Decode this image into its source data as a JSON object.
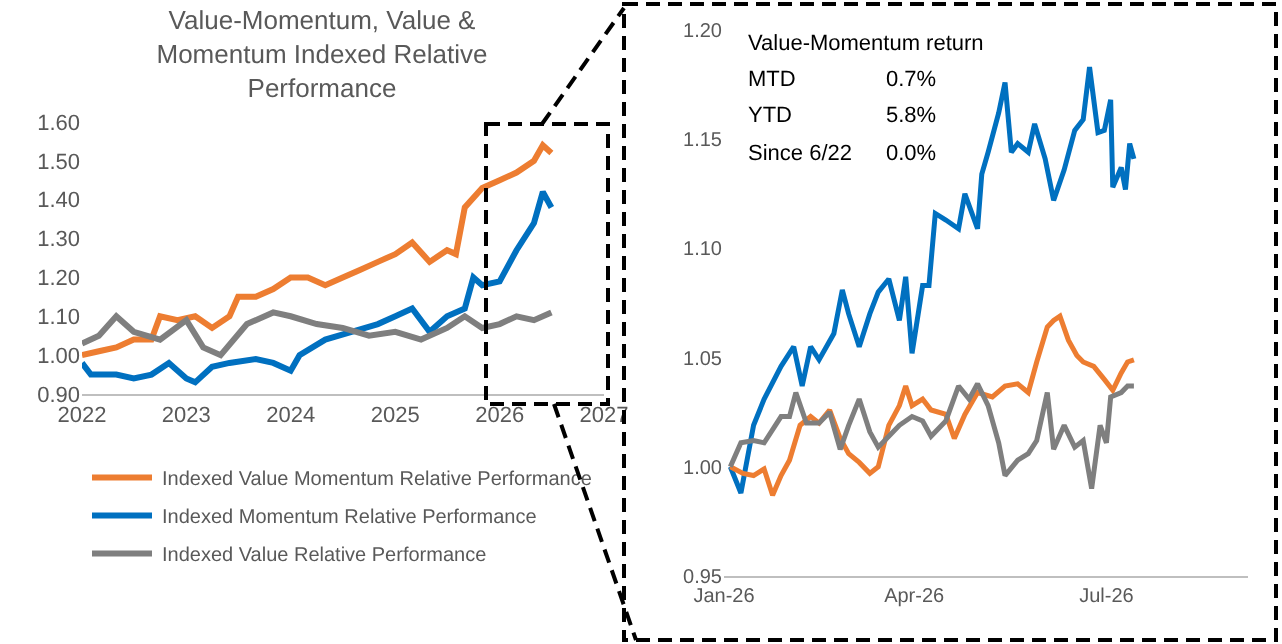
{
  "chart_data": [
    {
      "type": "line",
      "title": "Value-Momentum, Value & Momentum Indexed Relative Performance",
      "xlim": [
        "2022-01-01",
        "2027-01-01"
      ],
      "xticks": [
        {
          "value": "2022-01-01",
          "label": "2022"
        },
        {
          "value": "2023-01-01",
          "label": "2023"
        },
        {
          "value": "2024-01-01",
          "label": "2024"
        },
        {
          "value": "2025-01-01",
          "label": "2025"
        },
        {
          "value": "2026-01-01",
          "label": "2026"
        },
        {
          "value": "2027-01-01",
          "label": "2027"
        }
      ],
      "ylim": [
        0.9,
        1.6
      ],
      "yticks": [
        {
          "value": 0.9,
          "label": "0.90"
        },
        {
          "value": 1.0,
          "label": "1.00"
        },
        {
          "value": 1.1,
          "label": "1.10"
        },
        {
          "value": 1.2,
          "label": "1.20"
        },
        {
          "value": 1.3,
          "label": "1.30"
        },
        {
          "value": 1.4,
          "label": "1.40"
        },
        {
          "value": 1.5,
          "label": "1.50"
        },
        {
          "value": 1.6,
          "label": "1.60"
        }
      ],
      "grid": false,
      "legend": "bottom",
      "series": [
        {
          "name": "Indexed Value Momentum Relative Performance",
          "color": "#ed7d31",
          "x": [
            "2022-01",
            "2022-03",
            "2022-05",
            "2022-07",
            "2022-09",
            "2022-10",
            "2022-12",
            "2023-02",
            "2023-04",
            "2023-06",
            "2023-07",
            "2023-09",
            "2023-11",
            "2024-01",
            "2024-03",
            "2024-05",
            "2024-07",
            "2024-09",
            "2024-11",
            "2025-01",
            "2025-03",
            "2025-05",
            "2025-07",
            "2025-08",
            "2025-09",
            "2025-11",
            "2026-01",
            "2026-03",
            "2026-05",
            "2026-06",
            "2026-07"
          ],
          "values": [
            1.0,
            1.01,
            1.02,
            1.04,
            1.04,
            1.1,
            1.09,
            1.1,
            1.07,
            1.1,
            1.15,
            1.15,
            1.17,
            1.2,
            1.2,
            1.18,
            1.2,
            1.22,
            1.24,
            1.26,
            1.29,
            1.24,
            1.27,
            1.26,
            1.38,
            1.43,
            1.45,
            1.47,
            1.5,
            1.54,
            1.52
          ]
        },
        {
          "name": "Indexed Momentum Relative Performance",
          "color": "#0070c0",
          "x": [
            "2022-01",
            "2022-02",
            "2022-05",
            "2022-07",
            "2022-09",
            "2022-11",
            "2023-01",
            "2023-02",
            "2023-04",
            "2023-06",
            "2023-09",
            "2023-11",
            "2024-01",
            "2024-02",
            "2024-05",
            "2024-08",
            "2024-11",
            "2025-01",
            "2025-03",
            "2025-05",
            "2025-07",
            "2025-09",
            "2025-10",
            "2025-11",
            "2026-01",
            "2026-03",
            "2026-05",
            "2026-06",
            "2026-07"
          ],
          "values": [
            0.98,
            0.95,
            0.95,
            0.94,
            0.95,
            0.98,
            0.94,
            0.93,
            0.97,
            0.98,
            0.99,
            0.98,
            0.96,
            1.0,
            1.04,
            1.06,
            1.08,
            1.1,
            1.12,
            1.06,
            1.1,
            1.12,
            1.2,
            1.18,
            1.19,
            1.27,
            1.34,
            1.42,
            1.38
          ]
        },
        {
          "name": "Indexed Value Relative Performance",
          "color": "#7f7f7f",
          "x": [
            "2022-01",
            "2022-03",
            "2022-05",
            "2022-07",
            "2022-10",
            "2023-01",
            "2023-03",
            "2023-05",
            "2023-08",
            "2023-11",
            "2024-01",
            "2024-04",
            "2024-07",
            "2024-10",
            "2025-01",
            "2025-04",
            "2025-07",
            "2025-09",
            "2025-11",
            "2026-01",
            "2026-03",
            "2026-05",
            "2026-07"
          ],
          "values": [
            1.03,
            1.05,
            1.1,
            1.06,
            1.04,
            1.09,
            1.02,
            1.0,
            1.08,
            1.11,
            1.1,
            1.08,
            1.07,
            1.05,
            1.06,
            1.04,
            1.07,
            1.1,
            1.07,
            1.08,
            1.1,
            1.09,
            1.11
          ]
        }
      ]
    },
    {
      "type": "line",
      "annotations": [
        "Value-Momentum return",
        "MTD",
        "0.7%",
        "YTD",
        "5.8%",
        "Since 6/22",
        "0.0%"
      ],
      "xlim": [
        "2026-01-01",
        "2026-09-06"
      ],
      "xticks": [
        {
          "value": "2026-01-01",
          "label": "Jan-26"
        },
        {
          "value": "2026-04-01",
          "label": "Apr-26"
        },
        {
          "value": "2026-07-01",
          "label": "Jul-26"
        }
      ],
      "ylim": [
        0.95,
        1.2
      ],
      "yticks": [
        {
          "value": 0.95,
          "label": "0.95"
        },
        {
          "value": 1.0,
          "label": "1.00"
        },
        {
          "value": 1.05,
          "label": "1.05"
        },
        {
          "value": 1.1,
          "label": "1.10"
        },
        {
          "value": 1.15,
          "label": "1.15"
        },
        {
          "value": 1.2,
          "label": "1.20"
        }
      ],
      "grid": false,
      "series": [
        {
          "color": "#0070c0",
          "x": [
            "2026-01-04",
            "2026-01-09",
            "2026-01-15",
            "2026-01-20",
            "2026-01-28",
            "2026-02-03",
            "2026-02-07",
            "2026-02-11",
            "2026-02-15",
            "2026-02-22",
            "2026-02-26",
            "2026-03-01",
            "2026-03-06",
            "2026-03-11",
            "2026-03-15",
            "2026-03-20",
            "2026-03-25",
            "2026-03-28",
            "2026-03-31",
            "2026-04-05",
            "2026-04-08",
            "2026-04-11",
            "2026-04-16",
            "2026-04-22",
            "2026-04-25",
            "2026-05-01",
            "2026-05-03",
            "2026-05-06",
            "2026-05-11",
            "2026-05-14",
            "2026-05-17",
            "2026-05-20",
            "2026-05-25",
            "2026-05-28",
            "2026-06-02",
            "2026-06-06",
            "2026-06-11",
            "2026-06-16",
            "2026-06-20",
            "2026-06-23",
            "2026-06-27",
            "2026-06-30",
            "2026-07-03",
            "2026-07-04",
            "2026-07-08",
            "2026-07-10",
            "2026-07-12",
            "2026-07-14"
          ],
          "values": [
            1.0,
            0.988,
            1.019,
            1.031,
            1.046,
            1.055,
            1.037,
            1.055,
            1.049,
            1.061,
            1.081,
            1.07,
            1.055,
            1.07,
            1.08,
            1.086,
            1.067,
            1.087,
            1.052,
            1.083,
            1.083,
            1.116,
            1.113,
            1.109,
            1.125,
            1.109,
            1.134,
            1.144,
            1.162,
            1.176,
            1.144,
            1.148,
            1.144,
            1.157,
            1.141,
            1.122,
            1.136,
            1.154,
            1.159,
            1.183,
            1.153,
            1.154,
            1.168,
            1.128,
            1.137,
            1.127,
            1.148,
            1.141
          ]
        },
        {
          "color": "#ed7d31",
          "x": [
            "2026-01-04",
            "2026-01-10",
            "2026-01-15",
            "2026-01-20",
            "2026-01-24",
            "2026-01-28",
            "2026-02-01",
            "2026-02-06",
            "2026-02-11",
            "2026-02-15",
            "2026-02-20",
            "2026-02-25",
            "2026-03-01",
            "2026-03-06",
            "2026-03-11",
            "2026-03-15",
            "2026-03-20",
            "2026-03-25",
            "2026-03-28",
            "2026-03-31",
            "2026-04-05",
            "2026-04-09",
            "2026-04-16",
            "2026-04-20",
            "2026-04-25",
            "2026-05-01",
            "2026-05-08",
            "2026-05-14",
            "2026-05-20",
            "2026-05-25",
            "2026-05-29",
            "2026-06-03",
            "2026-06-06",
            "2026-06-09",
            "2026-06-13",
            "2026-06-17",
            "2026-06-20",
            "2026-06-25",
            "2026-06-30",
            "2026-07-04",
            "2026-07-08",
            "2026-07-11",
            "2026-07-14"
          ],
          "values": [
            1.0,
            0.997,
            0.996,
            0.999,
            0.987,
            0.996,
            1.003,
            1.019,
            1.023,
            1.02,
            1.026,
            1.013,
            1.006,
            1.002,
            0.997,
            1.0,
            1.019,
            1.028,
            1.037,
            1.028,
            1.031,
            1.026,
            1.024,
            1.013,
            1.024,
            1.034,
            1.032,
            1.037,
            1.038,
            1.034,
            1.048,
            1.064,
            1.067,
            1.069,
            1.058,
            1.051,
            1.048,
            1.046,
            1.04,
            1.035,
            1.043,
            1.048,
            1.049
          ]
        },
        {
          "color": "#7f7f7f",
          "x": [
            "2026-01-04",
            "2026-01-09",
            "2026-01-15",
            "2026-01-20",
            "2026-01-28",
            "2026-02-01",
            "2026-02-04",
            "2026-02-09",
            "2026-02-15",
            "2026-02-20",
            "2026-02-25",
            "2026-03-01",
            "2026-03-06",
            "2026-03-11",
            "2026-03-15",
            "2026-03-20",
            "2026-03-25",
            "2026-03-31",
            "2026-04-05",
            "2026-04-09",
            "2026-04-16",
            "2026-04-22",
            "2026-04-27",
            "2026-05-01",
            "2026-05-06",
            "2026-05-11",
            "2026-05-14",
            "2026-05-20",
            "2026-05-25",
            "2026-05-29",
            "2026-06-03",
            "2026-06-06",
            "2026-06-11",
            "2026-06-16",
            "2026-06-20",
            "2026-06-24",
            "2026-06-28",
            "2026-07-01",
            "2026-07-03",
            "2026-07-08",
            "2026-07-11",
            "2026-07-14"
          ],
          "values": [
            1.0,
            1.011,
            1.012,
            1.011,
            1.023,
            1.023,
            1.034,
            1.02,
            1.02,
            1.025,
            1.008,
            1.019,
            1.031,
            1.016,
            1.009,
            1.014,
            1.019,
            1.023,
            1.021,
            1.014,
            1.021,
            1.037,
            1.031,
            1.038,
            1.028,
            1.011,
            0.996,
            1.003,
            1.006,
            1.012,
            1.034,
            1.008,
            1.019,
            1.009,
            1.012,
            0.99,
            1.019,
            1.011,
            1.032,
            1.034,
            1.037,
            1.037
          ]
        }
      ]
    }
  ]
}
